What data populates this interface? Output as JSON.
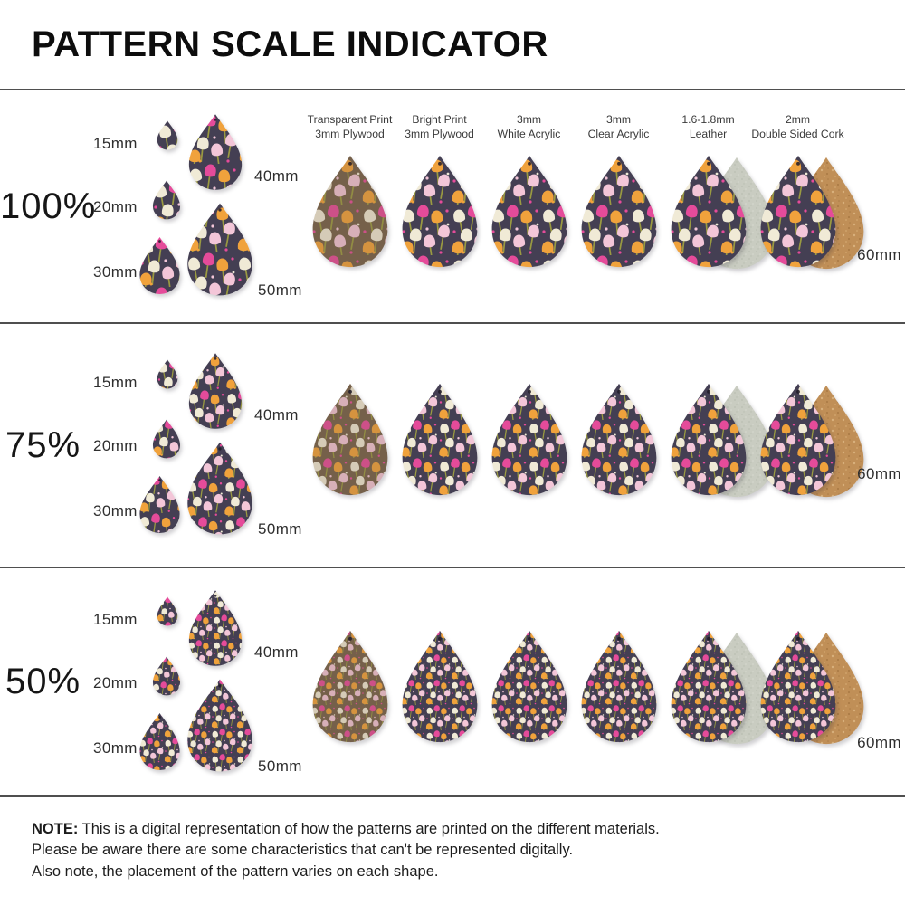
{
  "title": "PATTERN SCALE INDICATOR",
  "materials": [
    {
      "line1": "Transparent Print",
      "line2": "3mm Plywood"
    },
    {
      "line1": "Bright Print",
      "line2": "3mm Plywood"
    },
    {
      "line1": "3mm",
      "line2": "White Acrylic"
    },
    {
      "line1": "3mm",
      "line2": "Clear Acrylic"
    },
    {
      "line1": "1.6-1.8mm",
      "line2": "Leather"
    },
    {
      "line1": "2mm",
      "line2": "Double Sided Cork"
    }
  ],
  "rows": [
    {
      "scale": "100%",
      "pattern_scale": "100%",
      "sizes": {
        "s15": "15mm",
        "s20": "20mm",
        "s30": "30mm",
        "s40": "40mm",
        "s50": "50mm",
        "s60": "60mm"
      }
    },
    {
      "scale": "75%",
      "pattern_scale": "75%",
      "sizes": {
        "s15": "15mm",
        "s20": "20mm",
        "s30": "30mm",
        "s40": "40mm",
        "s50": "50mm",
        "s60": "60mm"
      }
    },
    {
      "scale": "50%",
      "pattern_scale": "50%",
      "sizes": {
        "s15": "15mm",
        "s20": "20mm",
        "s30": "30mm",
        "s40": "40mm",
        "s50": "50mm",
        "s60": "60mm"
      }
    }
  ],
  "note": {
    "label": "NOTE:",
    "lines": [
      "This is a digital representation of how the patterns are printed on the different materials.",
      "Please be aware there are some characteristics that can't be represented digitally.",
      "Also note, the placement of the pattern varies on each shape."
    ]
  },
  "colors": {
    "pattern_background": "#443f53",
    "flower_cream": "#f0ead6",
    "flower_light_pink": "#f3c6d8",
    "flower_magenta": "#e54b9a",
    "flower_orange": "#f0a23c",
    "stem_olive": "#9a9a41",
    "plywood_brown": "#75604a",
    "leather_suede_back": "#c9ccc1",
    "cork_back": "#c08f57",
    "divider": "#4f4f4f"
  }
}
